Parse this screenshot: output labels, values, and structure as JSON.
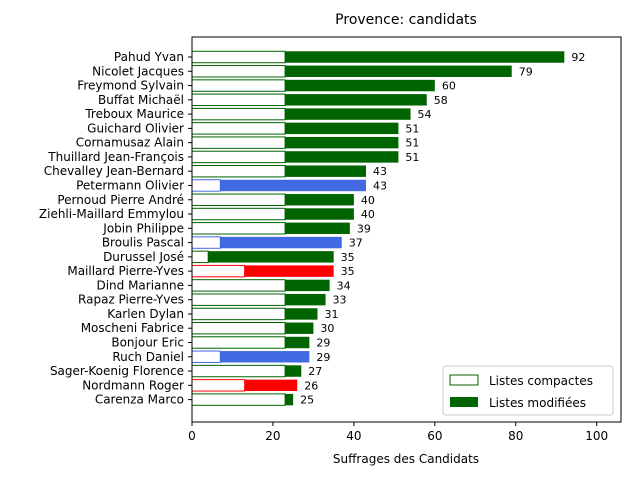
{
  "chart_data": {
    "type": "bar",
    "orientation": "horizontal",
    "title": "Provence: candidats",
    "xlabel": "Suffrages des Candidats",
    "ylabel": "",
    "xlim": [
      0,
      106
    ],
    "xticks": [
      0,
      20,
      40,
      60,
      80,
      100
    ],
    "grid": false,
    "legend_position": "lower-right",
    "categories": [
      "Pahud Yvan",
      "Nicolet Jacques",
      "Freymond Sylvain",
      "Buffat Michaël",
      "Treboux Maurice",
      "Guichard Olivier",
      "Cornamusaz Alain",
      "Thuillard Jean-François",
      "Chevalley Jean-Bernard",
      "Petermann Olivier",
      "Pernoud Pierre André",
      "Ziehli-Maillard Emmylou",
      "Jobin Philippe",
      "Broulis Pascal",
      "Durussel José",
      "Maillard Pierre-Yves",
      "Dind Marianne",
      "Rapaz Pierre-Yves",
      "Karlen Dylan",
      "Moscheni Fabrice",
      "Bonjour Eric",
      "Ruch Daniel",
      "Sager-Koenig Florence",
      "Nordmann Roger",
      "Carenza Marco"
    ],
    "series": [
      {
        "name": "Listes compactes",
        "values": [
          23,
          23,
          23,
          23,
          23,
          23,
          23,
          23,
          23,
          7,
          23,
          23,
          23,
          7,
          4,
          13,
          23,
          23,
          23,
          23,
          23,
          7,
          23,
          13,
          23
        ]
      },
      {
        "name": "Listes modifiées",
        "values": [
          69,
          56,
          37,
          35,
          31,
          28,
          28,
          28,
          20,
          36,
          17,
          17,
          16,
          30,
          31,
          22,
          11,
          10,
          8,
          7,
          6,
          22,
          4,
          13,
          2
        ]
      }
    ],
    "totals": [
      92,
      79,
      60,
      58,
      54,
      51,
      51,
      51,
      43,
      43,
      40,
      40,
      39,
      37,
      35,
      35,
      34,
      33,
      31,
      30,
      29,
      29,
      27,
      26,
      25
    ],
    "party_colors": [
      "#006400",
      "#006400",
      "#006400",
      "#006400",
      "#006400",
      "#006400",
      "#006400",
      "#006400",
      "#006400",
      "#4169e1",
      "#006400",
      "#006400",
      "#006400",
      "#4169e1",
      "#006400",
      "#ff0000",
      "#006400",
      "#006400",
      "#006400",
      "#006400",
      "#006400",
      "#4169e1",
      "#006400",
      "#ff0000",
      "#006400"
    ],
    "legend_colors": {
      "compact_fill": "#ffffff",
      "modified_fill": "#006400"
    }
  }
}
